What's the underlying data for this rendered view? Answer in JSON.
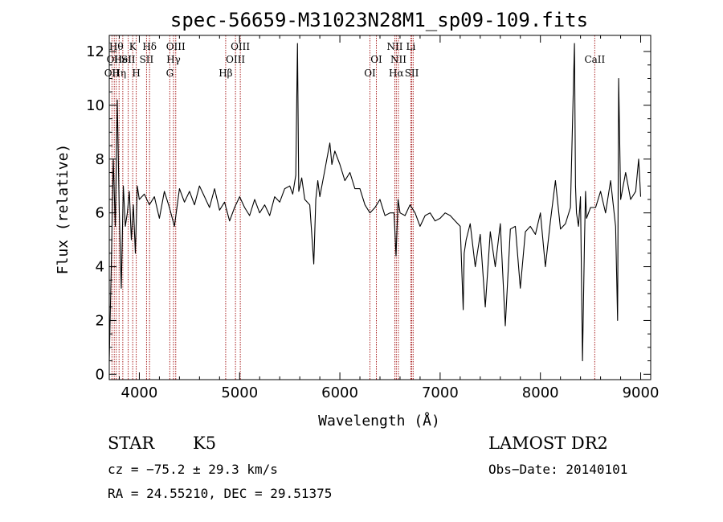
{
  "chart_data": {
    "type": "line",
    "title": "spec-56659-M31023N28M1_sp09-109.fits",
    "xlabel": "Wavelength (Å)",
    "ylabel": "Flux (relative)",
    "xlim": [
      3700,
      9100
    ],
    "ylim": [
      -0.2,
      12.6
    ],
    "xticks": [
      4000,
      5000,
      6000,
      7000,
      8000,
      9000
    ],
    "yticks": [
      0,
      2,
      4,
      6,
      8,
      10,
      12
    ],
    "grid": false,
    "series": [
      {
        "color": "#000000",
        "x": [
          3700,
          3720,
          3740,
          3760,
          3780,
          3800,
          3820,
          3840,
          3860,
          3880,
          3900,
          3920,
          3940,
          3960,
          3980,
          4000,
          4050,
          4100,
          4150,
          4200,
          4250,
          4300,
          4350,
          4400,
          4450,
          4500,
          4550,
          4600,
          4650,
          4700,
          4750,
          4800,
          4850,
          4900,
          4950,
          5000,
          5050,
          5100,
          5150,
          5200,
          5250,
          5300,
          5350,
          5400,
          5450,
          5500,
          5530,
          5560,
          5577,
          5590,
          5620,
          5650,
          5700,
          5740,
          5760,
          5780,
          5800,
          5850,
          5880,
          5900,
          5920,
          5950,
          6000,
          6050,
          6100,
          6150,
          6200,
          6250,
          6300,
          6350,
          6400,
          6450,
          6500,
          6540,
          6560,
          6580,
          6600,
          6650,
          6700,
          6750,
          6800,
          6850,
          6900,
          6950,
          7000,
          7050,
          7100,
          7150,
          7200,
          7230,
          7240,
          7260,
          7300,
          7350,
          7400,
          7450,
          7500,
          7550,
          7600,
          7650,
          7700,
          7750,
          7800,
          7850,
          7900,
          7950,
          8000,
          8050,
          8100,
          8150,
          8200,
          8250,
          8300,
          8340,
          8350,
          8360,
          8380,
          8400,
          8420,
          8440,
          8450,
          8460,
          8500,
          8550,
          8600,
          8650,
          8700,
          8750,
          8770,
          8780,
          8800,
          8850,
          8900,
          8950,
          8980,
          9000
        ],
        "y": [
          0.5,
          4.0,
          8.0,
          5.5,
          10.2,
          6.0,
          3.2,
          7.0,
          5.5,
          6.0,
          6.8,
          5.0,
          6.3,
          4.5,
          7.0,
          6.5,
          6.7,
          6.3,
          6.6,
          5.8,
          6.8,
          6.2,
          5.5,
          6.9,
          6.4,
          6.8,
          6.3,
          7.0,
          6.6,
          6.2,
          6.9,
          6.1,
          6.4,
          5.7,
          6.2,
          6.6,
          6.2,
          5.9,
          6.5,
          6.0,
          6.3,
          5.9,
          6.6,
          6.4,
          6.9,
          7.0,
          6.7,
          7.4,
          12.3,
          6.8,
          7.3,
          6.5,
          6.3,
          4.1,
          6.5,
          7.2,
          6.6,
          7.6,
          8.2,
          8.6,
          7.8,
          8.3,
          7.8,
          7.2,
          7.5,
          6.9,
          6.9,
          6.3,
          6.0,
          6.2,
          6.5,
          5.9,
          6.0,
          6.0,
          4.4,
          6.5,
          6.0,
          5.9,
          6.3,
          6.0,
          5.5,
          5.9,
          6.0,
          5.7,
          5.8,
          6.0,
          5.9,
          5.7,
          5.5,
          2.4,
          4.5,
          5.0,
          5.6,
          4.0,
          5.2,
          2.5,
          5.3,
          4.0,
          5.6,
          1.8,
          5.4,
          5.5,
          3.2,
          5.3,
          5.5,
          5.2,
          6.0,
          4.0,
          5.7,
          7.2,
          5.4,
          5.6,
          6.2,
          12.3,
          7.0,
          6.0,
          5.5,
          6.6,
          0.5,
          5.0,
          6.8,
          5.8,
          6.2,
          6.2,
          6.8,
          6.0,
          7.2,
          5.5,
          2.0,
          11.0,
          6.5,
          7.5,
          6.5,
          6.8,
          8.0,
          6.6
        ]
      }
    ],
    "lines": [
      {
        "wavelength": 3727,
        "labels": [
          "",
          "",
          "OII"
        ]
      },
      {
        "wavelength": 3750,
        "labels": [
          "",
          "OII",
          ""
        ]
      },
      {
        "wavelength": 3770,
        "labels": [
          "Hθ",
          "",
          ""
        ]
      },
      {
        "wavelength": 3798,
        "labels": [
          "",
          "",
          "Hη"
        ]
      },
      {
        "wavelength": 3835,
        "labels": [
          "",
          "HeI",
          ""
        ]
      },
      {
        "wavelength": 3889,
        "labels": [
          "",
          "SII",
          ""
        ]
      },
      {
        "wavelength": 3934,
        "labels": [
          "K",
          "",
          ""
        ]
      },
      {
        "wavelength": 3969,
        "labels": [
          "",
          "",
          "H"
        ]
      },
      {
        "wavelength": 4102,
        "labels": [
          "Hδ",
          "",
          ""
        ]
      },
      {
        "wavelength": 4072,
        "labels": [
          "",
          "SII",
          ""
        ]
      },
      {
        "wavelength": 4304,
        "labels": [
          "",
          "",
          "G"
        ]
      },
      {
        "wavelength": 4341,
        "labels": [
          "",
          "Hγ",
          ""
        ]
      },
      {
        "wavelength": 4363,
        "labels": [
          "OIII",
          "",
          ""
        ]
      },
      {
        "wavelength": 4861,
        "labels": [
          "",
          "",
          "Hβ"
        ]
      },
      {
        "wavelength": 4959,
        "labels": [
          "",
          "OIII",
          ""
        ]
      },
      {
        "wavelength": 5007,
        "labels": [
          "OIII",
          "",
          ""
        ]
      },
      {
        "wavelength": 6300,
        "labels": [
          "",
          "",
          "OI"
        ]
      },
      {
        "wavelength": 6364,
        "labels": [
          "",
          "OI",
          ""
        ]
      },
      {
        "wavelength": 6548,
        "labels": [
          "NII",
          "",
          ""
        ]
      },
      {
        "wavelength": 6563,
        "labels": [
          "",
          "",
          "Hα"
        ]
      },
      {
        "wavelength": 6584,
        "labels": [
          "",
          "NII",
          ""
        ]
      },
      {
        "wavelength": 6708,
        "labels": [
          "Li",
          "",
          ""
        ]
      },
      {
        "wavelength": 6717,
        "labels": [
          "",
          "",
          "SII"
        ]
      },
      {
        "wavelength": 6731,
        "labels": [
          "",
          "",
          ""
        ]
      },
      {
        "wavelength": 8542,
        "labels": [
          "",
          "CaII",
          ""
        ]
      }
    ]
  },
  "footer": {
    "object_class": "STAR",
    "subclass": "K5",
    "survey": "LAMOST DR2",
    "cz": "cz = −75.2 ± 29.3 km/s",
    "obs_date": "Obs−Date: 20140101",
    "coords": "RA =  24.55210, DEC =  29.51375"
  },
  "colors": {
    "line_markers": "#aa2222",
    "spectrum": "#000000",
    "axes": "#000000"
  }
}
